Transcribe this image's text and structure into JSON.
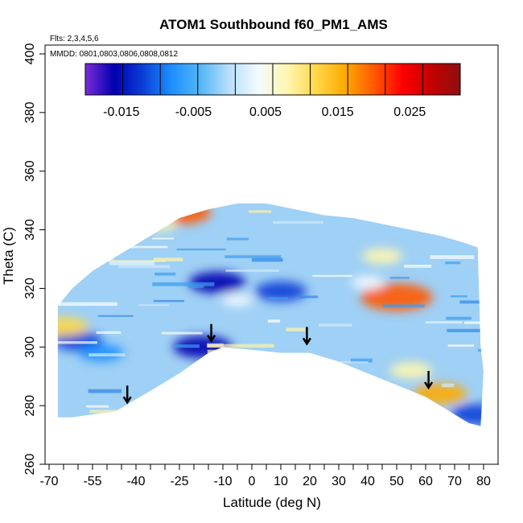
{
  "chart_data": {
    "type": "heatmap",
    "title": "ATOM1 Southbound f60_PM1_AMS",
    "subtitle": "Flts: 2,3,4,5,6",
    "annotation": "MMDD: 0801,0803,0806,0808,0812",
    "xlabel": "Latitude (deg N)",
    "ylabel": "Theta (C)",
    "xlim": [
      -70,
      85
    ],
    "ylim": [
      260,
      405
    ],
    "x_tick_labels": [
      "-70",
      "-55",
      "-40",
      "-25",
      "-10",
      "0",
      "10",
      "20",
      "30",
      "40",
      "50",
      "60",
      "70",
      "80"
    ],
    "x_tick_values": [
      -70,
      -55,
      -40,
      -25,
      -10,
      0,
      10,
      20,
      30,
      40,
      50,
      60,
      70,
      80
    ],
    "x_minor_ticks": [
      -65,
      -60,
      -50,
      -45,
      -35,
      -30,
      -20,
      -15,
      -5,
      5,
      15,
      25,
      35,
      45,
      55,
      65,
      75
    ],
    "y_ticks": [
      260,
      280,
      300,
      320,
      340,
      360,
      380,
      400
    ],
    "colorbar": {
      "range": [
        -0.02,
        0.032
      ],
      "tick_labels": [
        "-0.015",
        "-0.005",
        "0.005",
        "0.015",
        "0.025"
      ],
      "tick_values": [
        -0.015,
        -0.005,
        0.005,
        0.015,
        0.025
      ],
      "color_stops": [
        "#7d2bd8",
        "#0000b0",
        "#0a3fd8",
        "#1e90ff",
        "#55b7f5",
        "#b9e0fa",
        "#f2faff",
        "#fff6b0",
        "#ffd84a",
        "#ffaa00",
        "#ff5a00",
        "#ff0000",
        "#c40000",
        "#8c1010"
      ]
    },
    "data_region": {
      "top_boundary": [
        [
          -67,
          314
        ],
        [
          -62,
          320
        ],
        [
          -55,
          326
        ],
        [
          -45,
          332
        ],
        [
          -35,
          338
        ],
        [
          -25,
          344
        ],
        [
          -15,
          347
        ],
        [
          -5,
          349
        ],
        [
          5,
          349
        ],
        [
          15,
          347
        ],
        [
          25,
          345
        ],
        [
          35,
          344
        ],
        [
          45,
          342
        ],
        [
          55,
          340
        ],
        [
          65,
          338
        ],
        [
          72,
          336
        ],
        [
          78,
          334
        ],
        [
          79,
          300
        ],
        [
          80,
          292
        ]
      ],
      "bottom_boundary": [
        [
          80,
          292
        ],
        [
          79,
          273
        ],
        [
          75,
          274
        ],
        [
          70,
          277
        ],
        [
          60,
          283
        ],
        [
          50,
          287
        ],
        [
          40,
          291
        ],
        [
          30,
          295
        ],
        [
          20,
          298
        ],
        [
          10,
          298
        ],
        [
          0,
          299
        ],
        [
          -10,
          300
        ],
        [
          -15,
          298
        ],
        [
          -25,
          291
        ],
        [
          -35,
          285
        ],
        [
          -42,
          281
        ],
        [
          -47,
          278
        ],
        [
          -55,
          277
        ],
        [
          -62,
          276
        ],
        [
          -67,
          276
        ]
      ],
      "hotspots": [
        {
          "lat": -12,
          "theta": 322,
          "value": -0.015
        },
        {
          "lat": 10,
          "theta": 319,
          "value": -0.013
        },
        {
          "lat": -60,
          "theta": 302,
          "value": -0.012
        },
        {
          "lat": -52,
          "theta": 298,
          "value": -0.01
        },
        {
          "lat": -17,
          "theta": 300,
          "value": -0.016
        },
        {
          "lat": -25,
          "theta": 346,
          "value": 0.018
        },
        {
          "lat": 65,
          "theta": 284,
          "value": 0.014
        },
        {
          "lat": 55,
          "theta": 292,
          "value": 0.009
        },
        {
          "lat": -32,
          "theta": 342,
          "value": 0.006
        },
        {
          "lat": 50,
          "theta": 317,
          "value": 0.022
        },
        {
          "lat": 45,
          "theta": 331,
          "value": 0.008
        },
        {
          "lat": -65,
          "theta": 307,
          "value": 0.012
        },
        {
          "lat": 78,
          "theta": 277,
          "value": -0.014
        },
        {
          "lat": 40,
          "theta": 322,
          "value": 0.005
        },
        {
          "lat": -5,
          "theta": 316,
          "value": 0.004
        }
      ]
    },
    "arrows": [
      {
        "lat": -43,
        "theta": 283
      },
      {
        "lat": -14,
        "theta": 304
      },
      {
        "lat": 19,
        "theta": 303
      },
      {
        "lat": 61,
        "theta": 288
      }
    ]
  }
}
